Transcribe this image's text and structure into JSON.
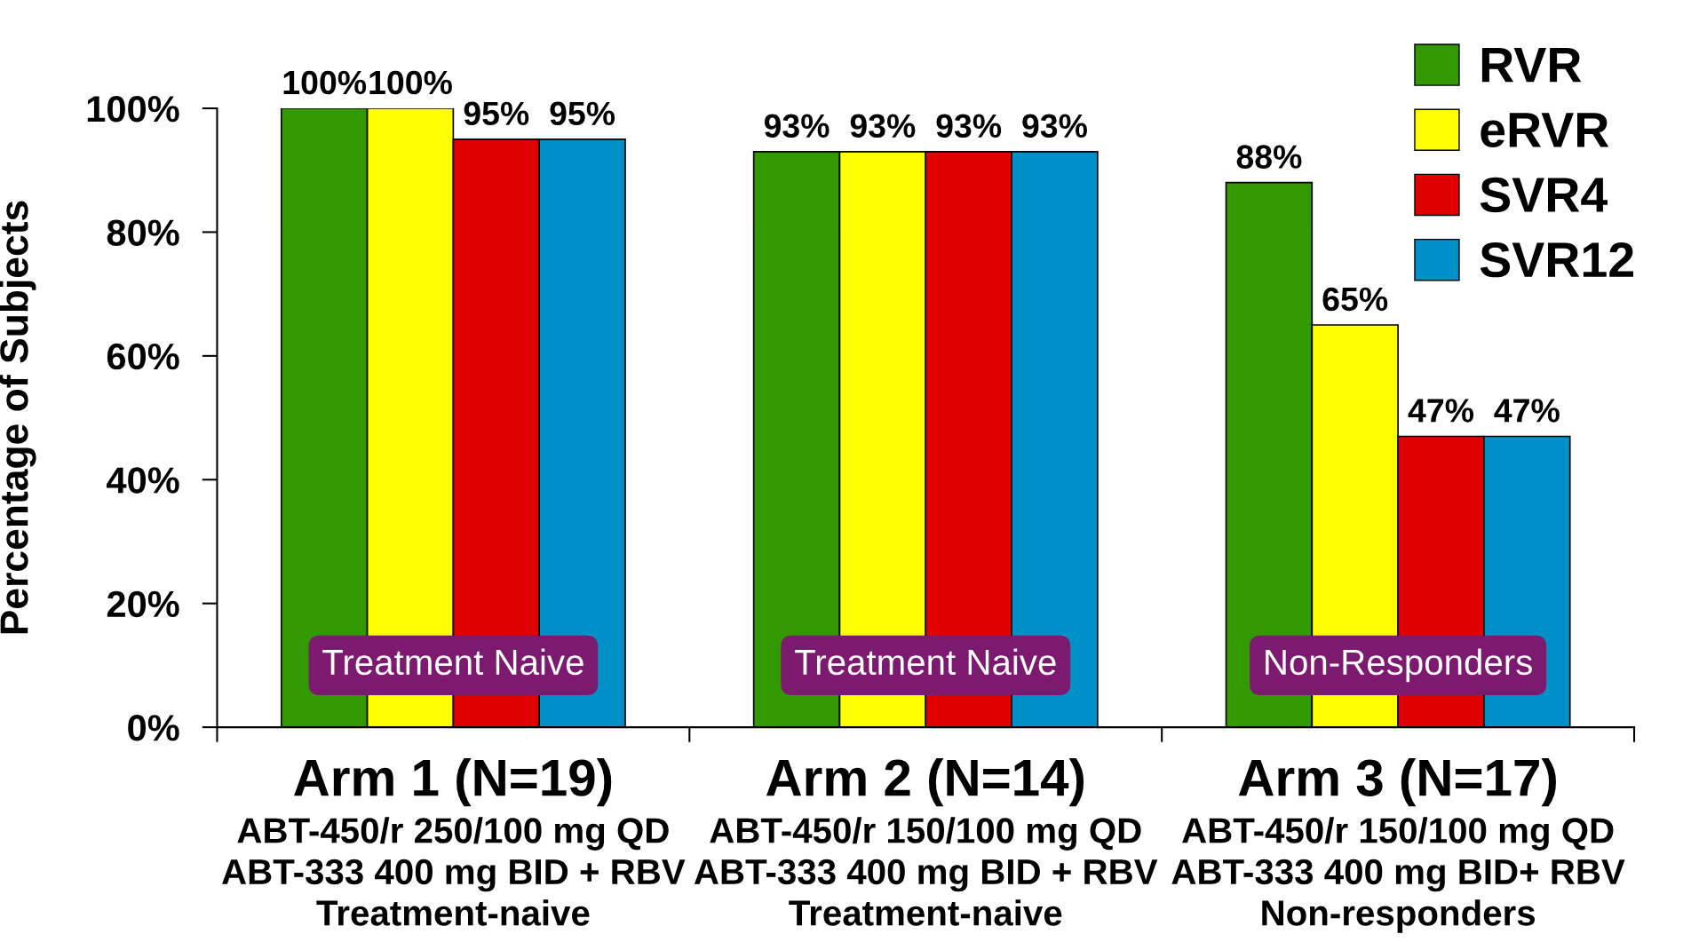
{
  "chart_data": {
    "type": "bar",
    "ylabel": "Percentage of Subjects",
    "categories": [
      "Arm 1 (N=19)\nABT-450/r 250/100 mg QD\nABT-333 400 mg BID + RBV\nTreatment-naive",
      "Arm 2 (N=14)\nABT-450/r 150/100 mg QD\nABT-333 400 mg BID + RBV\nTreatment-naive",
      "Arm 3 (N=17)\nABT-450/r 150/100 mg QD\nABT-333 400 mg BID+ RBV\nNon-responders"
    ],
    "series": [
      {
        "name": "RVR",
        "color": "#339900",
        "values": [
          100,
          93,
          88
        ],
        "value_labels": [
          "100%",
          "93%",
          "88%"
        ]
      },
      {
        "name": "eRVR",
        "color": "#ffff00",
        "values": [
          100,
          93,
          65
        ],
        "value_labels": [
          "100%",
          "93%",
          "65%"
        ]
      },
      {
        "name": "SVR4",
        "color": "#e00000",
        "values": [
          95,
          93,
          47
        ],
        "value_labels": [
          "95%",
          "93%",
          "47%"
        ]
      },
      {
        "name": "SVR12",
        "color": "#0090c8",
        "values": [
          95,
          93,
          47
        ],
        "value_labels": [
          "95%",
          "93%",
          "47%"
        ]
      }
    ],
    "ylim": [
      0,
      100
    ],
    "yticks": [
      {
        "value": 0,
        "label": "0%"
      },
      {
        "value": 20,
        "label": "20%"
      },
      {
        "value": 40,
        "label": "40%"
      },
      {
        "value": 60,
        "label": "60%"
      },
      {
        "value": 80,
        "label": "80%"
      },
      {
        "value": 100,
        "label": "100%"
      }
    ],
    "annotations": [
      "Treatment Naive",
      "Treatment Naive",
      "Non-Responders"
    ],
    "legend": "top right",
    "grid": false
  }
}
